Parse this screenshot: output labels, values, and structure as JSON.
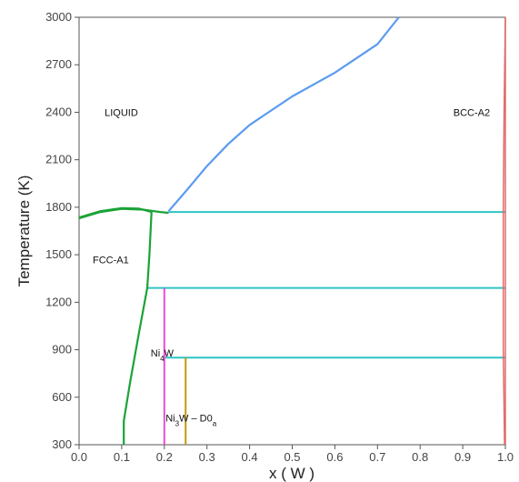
{
  "chart_data": {
    "type": "line",
    "title": "",
    "xlabel": "x ( W )",
    "ylabel": "Temperature (K)",
    "xlim": [
      0.0,
      1.0
    ],
    "ylim": [
      300,
      3000
    ],
    "x_ticks": [
      "0.0",
      "0.1",
      "0.2",
      "0.3",
      "0.4",
      "0.5",
      "0.6",
      "0.7",
      "0.8",
      "0.9",
      "1.0"
    ],
    "y_ticks": [
      "300",
      "600",
      "900",
      "1200",
      "1500",
      "1800",
      "2100",
      "2400",
      "2700",
      "3000"
    ],
    "grid": false,
    "colors": {
      "liquidus_fcc": "#1aa336",
      "liquidus_bcc": "#5b9bf0",
      "invariant": "#2ec4c6",
      "ni4w": "#f04ad8",
      "ni3w": "#c09a10",
      "bcc_boundary": "#e06a6a",
      "axis": "#555555"
    },
    "region_labels": [
      {
        "id": "liquid",
        "text": "LIQUID"
      },
      {
        "id": "bcc",
        "text": "BCC-A2"
      },
      {
        "id": "fcc",
        "text": "FCC-A1"
      },
      {
        "id": "ni4w",
        "base": "Ni",
        "sub": "4",
        "rest": "W"
      },
      {
        "id": "ni3w",
        "base": "Ni",
        "sub": "3",
        "rest": "W – D0",
        "sub2": "a"
      }
    ],
    "series": [
      {
        "id": "fcc_liquidus",
        "points": [
          [
            0.0,
            1730
          ],
          [
            0.05,
            1770
          ],
          [
            0.1,
            1790
          ],
          [
            0.15,
            1785
          ],
          [
            0.19,
            1770
          ],
          [
            0.21,
            1765
          ]
        ]
      },
      {
        "id": "fcc_solidus",
        "points": [
          [
            0.0,
            1735
          ],
          [
            0.05,
            1775
          ],
          [
            0.1,
            1795
          ],
          [
            0.14,
            1792
          ],
          [
            0.17,
            1770
          ]
        ]
      },
      {
        "id": "fcc_solvus",
        "points": [
          [
            0.17,
            1770
          ],
          [
            0.165,
            1500
          ],
          [
            0.16,
            1290
          ],
          [
            0.14,
            1000
          ],
          [
            0.12,
            700
          ],
          [
            0.105,
            450
          ],
          [
            0.105,
            300
          ]
        ]
      },
      {
        "id": "bcc_liquidus",
        "points": [
          [
            0.21,
            1775
          ],
          [
            0.25,
            1900
          ],
          [
            0.3,
            2060
          ],
          [
            0.35,
            2200
          ],
          [
            0.4,
            2320
          ],
          [
            0.5,
            2500
          ],
          [
            0.6,
            2650
          ],
          [
            0.7,
            2830
          ],
          [
            0.75,
            3000
          ]
        ]
      },
      {
        "id": "bcc_solidus",
        "points": [
          [
            1.0,
            3000
          ],
          [
            0.997,
            2400
          ],
          [
            0.995,
            1800
          ],
          [
            0.995,
            900
          ],
          [
            0.998,
            300
          ]
        ]
      },
      {
        "id": "bcc_solvus_right",
        "points": [
          [
            1.0,
            3000
          ],
          [
            1.0,
            300
          ]
        ]
      }
    ],
    "horizontals": [
      {
        "id": "eutectic_1770",
        "x": [
          0.21,
          1.0
        ],
        "y": 1770
      },
      {
        "id": "peritectoid_1290",
        "x": [
          0.16,
          1.0
        ],
        "y": 1290
      },
      {
        "id": "peritectoid_850",
        "x": [
          0.2,
          1.0
        ],
        "y": 850
      }
    ],
    "verticals": [
      {
        "id": "ni4w_line",
        "x": 0.2,
        "y": [
          300,
          1290
        ],
        "color_key": "ni4w"
      },
      {
        "id": "ni3w_line",
        "x": 0.25,
        "y": [
          300,
          850
        ],
        "color_key": "ni3w"
      }
    ]
  }
}
